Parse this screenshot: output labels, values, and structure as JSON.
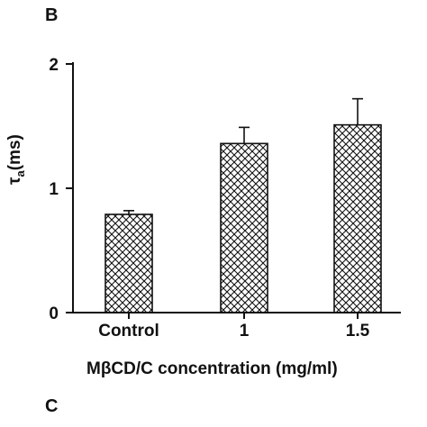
{
  "panel_label_top": "B",
  "panel_label_bottom": "C",
  "chart_data": {
    "type": "bar",
    "categories": [
      "Control",
      "1",
      "1.5"
    ],
    "values": [
      0.79,
      1.36,
      1.51
    ],
    "errors": [
      0.03,
      0.13,
      0.21
    ],
    "ylim": [
      0,
      2
    ],
    "yticks": [
      0,
      1,
      2
    ],
    "ytick_labels": [
      "0",
      "1",
      "2"
    ],
    "ylabel_symbol": "τ",
    "ylabel_subscript": "a",
    "ylabel_unit": "(ms)",
    "xlabel": "MβCD/C concentration  (mg/ml)",
    "bar_fill": "crosshatch",
    "bar_color": "#111111",
    "error_bars": "top-only",
    "grid": false
  }
}
